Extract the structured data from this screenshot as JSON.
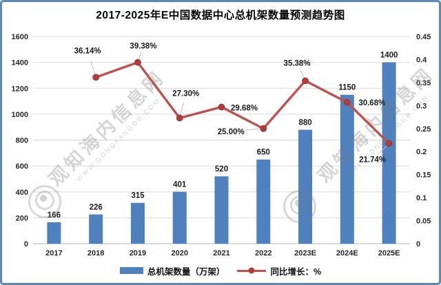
{
  "frame": {
    "border_color": "#5b87bb",
    "background": "#ffffff"
  },
  "chart_data": {
    "type": "bar+line combo",
    "title": "2017-2025年E中国数据中心总机架数量预测趋势图",
    "categories": [
      "2017",
      "2018",
      "2019",
      "2020",
      "2021",
      "2022",
      "2023E",
      "2024E",
      "2025E"
    ],
    "series": [
      {
        "name": "总机架数量（万架）",
        "type": "bar",
        "axis": "left",
        "color": "#4e81bd",
        "values": [
          166,
          226,
          315,
          401,
          520,
          650,
          880,
          1150,
          1400
        ]
      },
      {
        "name": "同比增长：%",
        "type": "line",
        "axis": "right",
        "color": "#c0504d",
        "marker_color": "#b23c39",
        "values_pct": [
          null,
          36.14,
          39.38,
          27.3,
          29.68,
          25.0,
          35.38,
          30.68,
          21.74
        ]
      }
    ],
    "left_axis": {
      "min": 0,
      "max": 1600,
      "step": 200,
      "ticks": [
        "0",
        "200",
        "400",
        "600",
        "800",
        "1000",
        "1200",
        "1400",
        "1600"
      ]
    },
    "right_axis": {
      "min": 0,
      "max": 0.45,
      "step": 0.05,
      "ticks": [
        "0",
        "0.05",
        "0.1",
        "0.15",
        "0.2",
        "0.25",
        "0.3",
        "0.35",
        "0.4",
        "0.45"
      ]
    },
    "grid": "horizontal",
    "legend_position": "bottom"
  },
  "watermark": {
    "site_name": "观知海内信息网",
    "site_url": "WWW.DONGFANGGB.COM"
  }
}
